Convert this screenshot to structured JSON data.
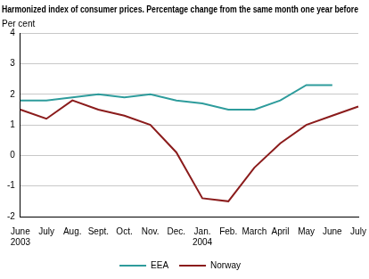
{
  "chart_data": {
    "type": "line",
    "title": "Harmonized index of consumer prices. Percentage change from the same month one year before",
    "y_label": "Per cent",
    "categories": [
      "June 2003",
      "July",
      "Aug.",
      "Sept.",
      "Oct.",
      "Nov.",
      "Dec.",
      "Jan. 2004",
      "Feb.",
      "March",
      "April",
      "May",
      "June",
      "July"
    ],
    "series": [
      {
        "name": "EEA",
        "color": "#2e9c9c",
        "values": [
          1.8,
          1.8,
          1.9,
          2.0,
          1.9,
          2.0,
          1.8,
          1.7,
          1.5,
          1.5,
          1.8,
          2.3,
          2.3,
          null
        ]
      },
      {
        "name": "Norway",
        "color": "#8b1c1c",
        "values": [
          1.5,
          1.2,
          1.8,
          1.5,
          1.3,
          1.0,
          0.1,
          -1.4,
          -1.5,
          -0.4,
          0.4,
          1.0,
          1.3,
          1.6
        ]
      }
    ],
    "ylim": [
      -2,
      4
    ],
    "yticks": [
      -2,
      -1,
      0,
      1,
      2,
      3,
      4
    ],
    "grid": true,
    "legend": "bottom"
  }
}
